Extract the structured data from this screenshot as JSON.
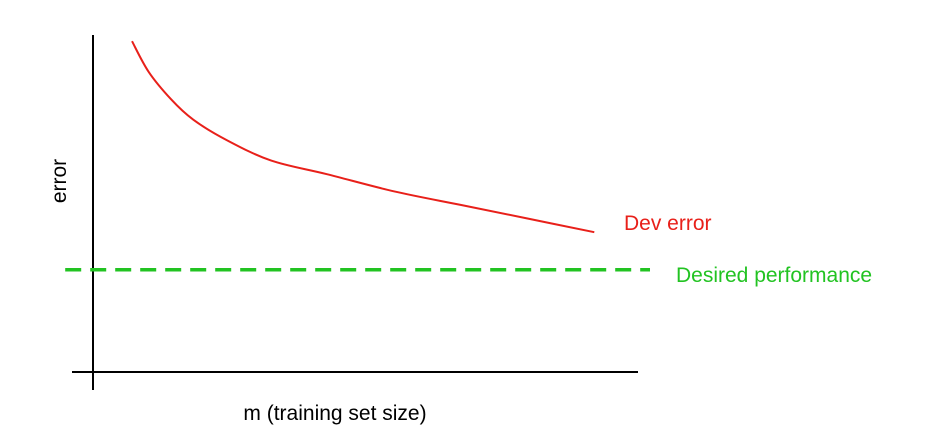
{
  "chart_data": {
    "type": "line",
    "title": "",
    "xlabel": "m (training set size)",
    "ylabel": "error",
    "xlim": [
      0,
      1
    ],
    "ylim": [
      0,
      1
    ],
    "grid": false,
    "x_ticks_shown": false,
    "y_ticks_shown": false,
    "series": [
      {
        "name": "Dev error",
        "color": "#e8201a",
        "style": "solid",
        "x": [
          0.07,
          0.1,
          0.14,
          0.18,
          0.24,
          0.32,
          0.42,
          0.54,
          0.66,
          0.78,
          0.9
        ],
        "y": [
          0.97,
          0.88,
          0.8,
          0.74,
          0.68,
          0.62,
          0.58,
          0.53,
          0.49,
          0.45,
          0.41
        ]
      },
      {
        "name": "Desired performance",
        "color": "#22c322",
        "style": "dashed",
        "x": [
          -0.05,
          1.0
        ],
        "y": [
          0.3,
          0.3
        ]
      }
    ]
  }
}
